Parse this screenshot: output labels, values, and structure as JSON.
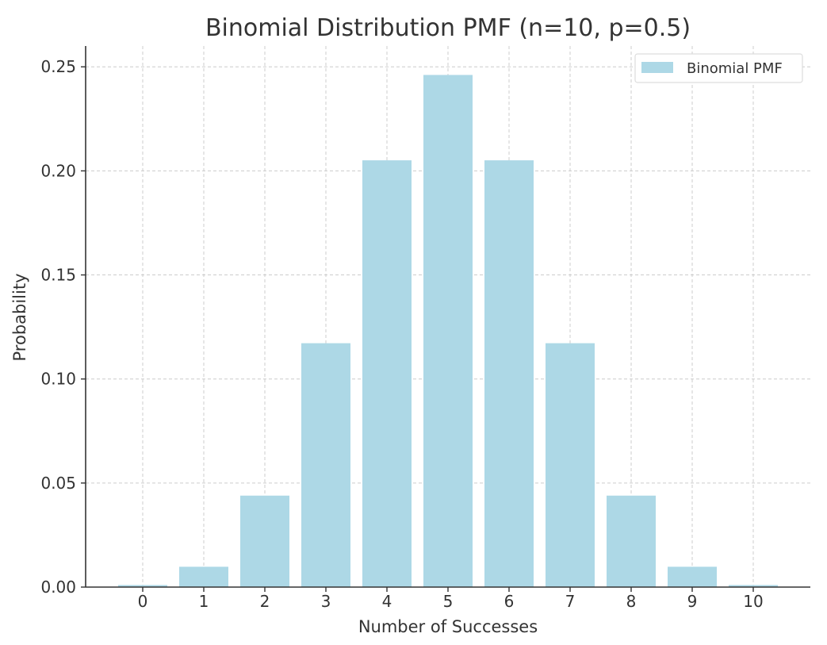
{
  "chart_data": {
    "type": "bar",
    "title": "Binomial Distribution PMF (n=10, p=0.5)",
    "xlabel": "Number of Successes",
    "ylabel": "Probability",
    "categories": [
      "0",
      "1",
      "2",
      "3",
      "4",
      "5",
      "6",
      "7",
      "8",
      "9",
      "10"
    ],
    "series": [
      {
        "name": "Binomial PMF",
        "values": [
          0.000977,
          0.009766,
          0.043945,
          0.117188,
          0.205078,
          0.246094,
          0.205078,
          0.117188,
          0.043945,
          0.009766,
          0.000977
        ]
      }
    ],
    "ylim": [
      0,
      0.26
    ],
    "yticks": [
      "0.00",
      "0.05",
      "0.10",
      "0.15",
      "0.20",
      "0.25"
    ],
    "grid": true,
    "legend_position": "top-right",
    "colors": {
      "bar": "#add8e6"
    }
  }
}
